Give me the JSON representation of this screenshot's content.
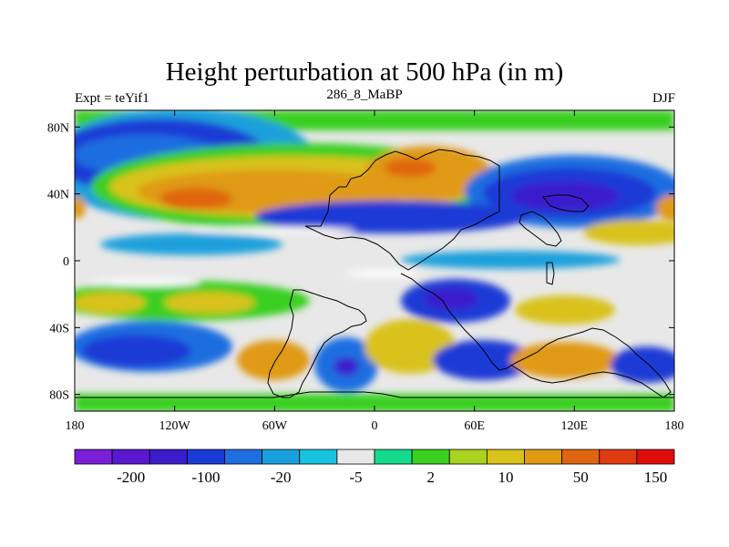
{
  "title": "Height perturbation at 500 hPa (in m)",
  "left_label": "Expt = teYif1",
  "center_label": "286_8_MaBP",
  "right_label": "DJF",
  "lat_ticks": [
    {
      "value": 80,
      "label": "80N"
    },
    {
      "value": 40,
      "label": "40N"
    },
    {
      "value": 0,
      "label": "0"
    },
    {
      "value": -40,
      "label": "40S"
    },
    {
      "value": -80,
      "label": "80S"
    }
  ],
  "lon_ticks": [
    {
      "value": -180,
      "label": "180"
    },
    {
      "value": -120,
      "label": "120W"
    },
    {
      "value": -60,
      "label": "60W"
    },
    {
      "value": 0,
      "label": "0"
    },
    {
      "value": 60,
      "label": "60E"
    },
    {
      "value": 120,
      "label": "120E"
    },
    {
      "value": 180,
      "label": "180"
    }
  ],
  "colorbar": {
    "colors": [
      "#7a1fd6",
      "#5a17d0",
      "#3a1ccc",
      "#1b3bd6",
      "#1f6ee0",
      "#1aa0dc",
      "#18c3e0",
      "#e8e8e8",
      "#14db8c",
      "#3bcf20",
      "#a8d21e",
      "#d9c21a",
      "#e09a14",
      "#e06510",
      "#e03a10",
      "#e00c0c"
    ],
    "labels": [
      {
        "after_box": 2,
        "text": "-200"
      },
      {
        "after_box": 4,
        "text": "-100"
      },
      {
        "after_box": 6,
        "text": "-20"
      },
      {
        "after_box": 8,
        "text": "-5"
      },
      {
        "after_box": 10,
        "text": "2"
      },
      {
        "after_box": 12,
        "text": "10"
      },
      {
        "after_box": 14,
        "text": "50"
      },
      {
        "after_box": 16,
        "text": "150"
      }
    ]
  },
  "fill_colors": {
    "background": "#e8e8e8",
    "deep_purple": "#3a1ccc",
    "blue": "#1b3bd6",
    "mid_blue": "#1f6ee0",
    "light_blue": "#1aa0dc",
    "cyan": "#18c3e0",
    "white": "#ffffff",
    "teal": "#14db8c",
    "green": "#3bcf20",
    "yellow_green": "#a8d21e",
    "yellow": "#d9c21a",
    "orange": "#e09a14",
    "dark_orange": "#e06510"
  }
}
